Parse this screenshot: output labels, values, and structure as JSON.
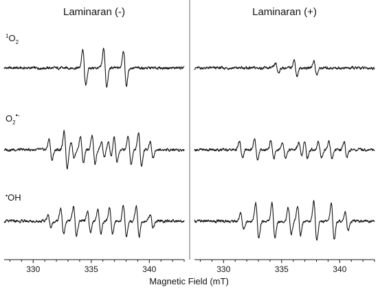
{
  "chart_data": {
    "type": "line",
    "title": "",
    "xlabel": "Magnetic Field (mT)",
    "ylabel": "",
    "panels": [
      {
        "title": "Laminaran (-)",
        "xlim": [
          327.5,
          343
        ],
        "xticks": [
          330,
          335,
          340
        ]
      },
      {
        "title": "Laminaran (+)",
        "xlim": [
          327.5,
          343
        ],
        "xticks": [
          330,
          335,
          340
        ]
      }
    ],
    "species": [
      {
        "id": "singlet-oxygen",
        "label_main": "O",
        "label_sup": "1",
        "label_sub": "2",
        "label_dot": ""
      },
      {
        "id": "superoxide",
        "label_main": "O",
        "label_sup": "",
        "label_sub": "2",
        "label_dot": "•-"
      },
      {
        "id": "hydroxyl",
        "label_main": "OH",
        "label_sup": "",
        "label_sub": "",
        "label_dot": "•"
      }
    ],
    "series": [
      {
        "panel": 0,
        "row": 0,
        "peaks": [
          [
            334.4,
            1.0
          ],
          [
            336.2,
            1.1
          ],
          [
            337.9,
            1.0
          ]
        ]
      },
      {
        "panel": 1,
        "row": 0,
        "peaks": [
          [
            334.6,
            0.25
          ],
          [
            336.2,
            0.45
          ],
          [
            337.9,
            0.4
          ]
        ]
      },
      {
        "panel": 0,
        "row": 1,
        "peaks": [
          [
            331.5,
            0.6
          ],
          [
            332.8,
            1.0
          ],
          [
            333.4,
            0.45
          ],
          [
            334.2,
            0.75
          ],
          [
            335.2,
            0.8
          ],
          [
            336.0,
            0.4
          ],
          [
            336.6,
            0.4
          ],
          [
            337.1,
            0.7
          ],
          [
            338.3,
            0.8
          ],
          [
            339.2,
            0.95
          ],
          [
            340.2,
            0.45
          ]
        ]
      },
      {
        "panel": 1,
        "row": 1,
        "peaks": [
          [
            331.5,
            0.45
          ],
          [
            332.8,
            0.55
          ],
          [
            334.2,
            0.5
          ],
          [
            335.2,
            0.45
          ],
          [
            336.6,
            0.4
          ],
          [
            337.1,
            0.45
          ],
          [
            338.3,
            0.45
          ],
          [
            339.2,
            0.5
          ],
          [
            340.5,
            0.45
          ]
        ]
      },
      {
        "panel": 0,
        "row": 2,
        "peaks": [
          [
            331.4,
            0.35
          ],
          [
            332.5,
            0.7
          ],
          [
            333.6,
            0.8
          ],
          [
            334.8,
            0.6
          ],
          [
            335.7,
            0.7
          ],
          [
            336.7,
            0.7
          ],
          [
            337.9,
            0.85
          ],
          [
            339.0,
            0.85
          ],
          [
            340.2,
            0.35
          ]
        ]
      },
      {
        "panel": 1,
        "row": 2,
        "peaks": [
          [
            331.6,
            0.45
          ],
          [
            332.9,
            1.0
          ],
          [
            334.3,
            1.0
          ],
          [
            335.7,
            0.75
          ],
          [
            336.5,
            0.8
          ],
          [
            337.9,
            1.1
          ],
          [
            339.4,
            1.0
          ],
          [
            340.6,
            0.55
          ]
        ]
      }
    ]
  }
}
